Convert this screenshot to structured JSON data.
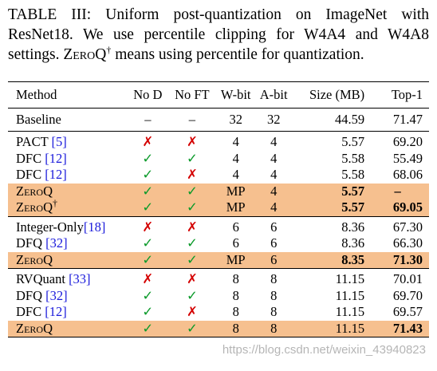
{
  "caption": {
    "line1": "TABLE III: Uniform post-quantization on ImageNet with",
    "line2": "ResNet18. We use percentile clipping for W4A4 and W4A8",
    "line3_pre": "settings. ",
    "line3_sc": "ZeroQ",
    "line3_dagger": "†",
    "line3_post": " means using percentile for quantization."
  },
  "table": {
    "headers": {
      "method": "Method",
      "nod": "No D",
      "noft": "No FT",
      "wbit": "W-bit",
      "abit": "A-bit",
      "size": "Size (MB)",
      "top1": "Top-1"
    },
    "baseline": {
      "method": "Baseline",
      "nod": "–",
      "noft": "–",
      "wbit": "32",
      "abit": "32",
      "size": "44.59",
      "top1": "71.47"
    },
    "group1": [
      {
        "name": "PACT ",
        "ref": "[5]",
        "nod": "✗",
        "noft": "✗",
        "wbit": "4",
        "abit": "4",
        "size": "5.57",
        "top1": "69.20"
      },
      {
        "name": "DFC ",
        "ref": "[12]",
        "nod": "✓",
        "noft": "✓",
        "wbit": "4",
        "abit": "4",
        "size": "5.58",
        "top1": "55.49"
      },
      {
        "name": "DFC ",
        "ref": "[12]",
        "nod": "✓",
        "noft": "✗",
        "wbit": "4",
        "abit": "4",
        "size": "5.58",
        "top1": "68.06"
      },
      {
        "name": "ZeroQ",
        "dagger": "",
        "nod": "✓",
        "noft": "✓",
        "wbit": "MP",
        "abit": "4",
        "size": "5.57",
        "top1": "–"
      },
      {
        "name": "ZeroQ",
        "dagger": "†",
        "nod": "✓",
        "noft": "✓",
        "wbit": "MP",
        "abit": "4",
        "size": "5.57",
        "top1": "69.05"
      }
    ],
    "group2": [
      {
        "name": "Integer-Only",
        "ref": "[18]",
        "nod": "✗",
        "noft": "✗",
        "wbit": "6",
        "abit": "6",
        "size": "8.36",
        "top1": "67.30"
      },
      {
        "name": "DFQ ",
        "ref": "[32]",
        "nod": "✓",
        "noft": "✓",
        "wbit": "6",
        "abit": "6",
        "size": "8.36",
        "top1": "66.30"
      },
      {
        "name": "ZeroQ",
        "nod": "✓",
        "noft": "✓",
        "wbit": "MP",
        "abit": "6",
        "size": "8.35",
        "top1": "71.30"
      }
    ],
    "group3": [
      {
        "name": "RVQuant ",
        "ref": "[33]",
        "nod": "✗",
        "noft": "✗",
        "wbit": "8",
        "abit": "8",
        "size": "11.15",
        "top1": "70.01"
      },
      {
        "name": "DFQ ",
        "ref": "[32]",
        "nod": "✓",
        "noft": "✓",
        "wbit": "8",
        "abit": "8",
        "size": "11.15",
        "top1": "69.70"
      },
      {
        "name": "DFC ",
        "ref": "[12]",
        "nod": "✓",
        "noft": "✗",
        "wbit": "8",
        "abit": "8",
        "size": "11.15",
        "top1": "69.57"
      },
      {
        "name": "ZeroQ",
        "nod": "✓",
        "noft": "✓",
        "wbit": "8",
        "abit": "8",
        "size": "11.15",
        "top1": "71.43"
      }
    ]
  },
  "colors": {
    "highlight": "#f6c08f",
    "cross": "#d40000",
    "check": "#0b9a2a",
    "reference_link": "#1a1adb"
  },
  "watermark": "https://blog.csdn.net/weixin_43940823"
}
